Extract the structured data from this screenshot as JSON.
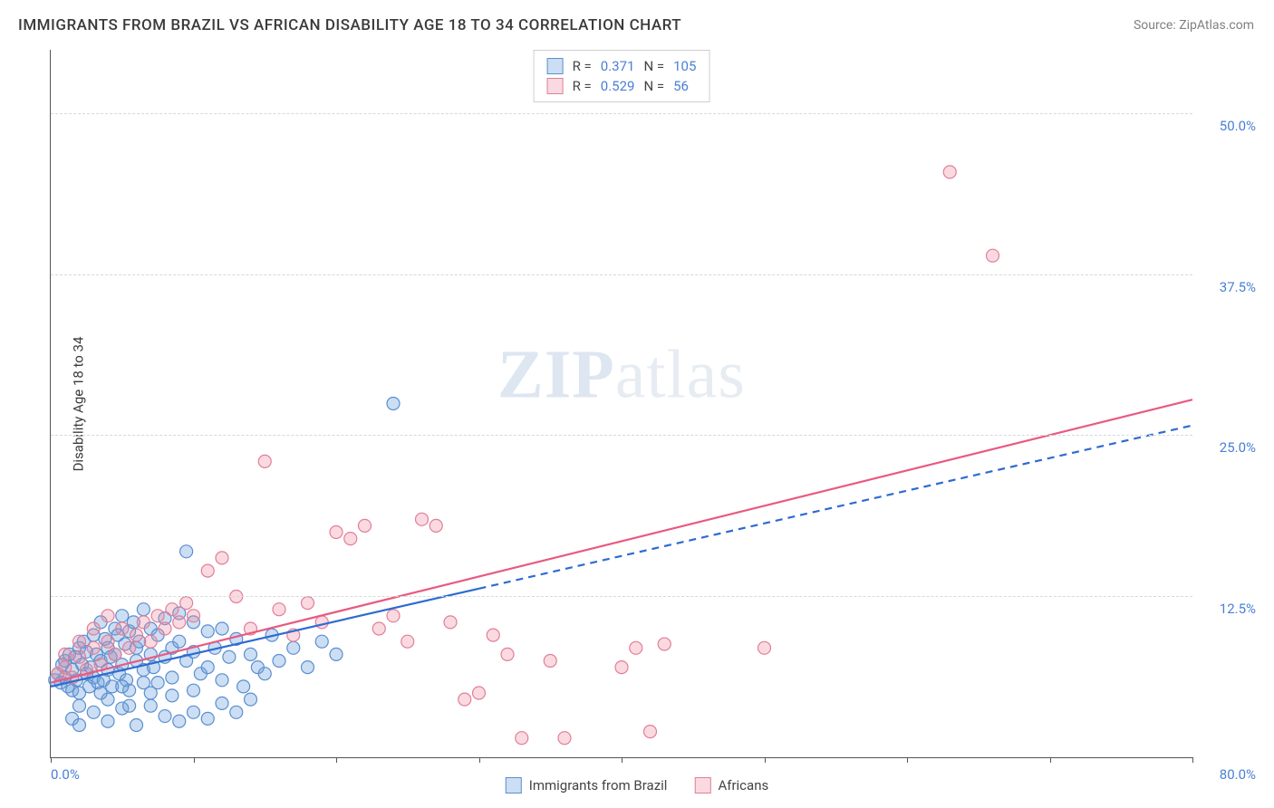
{
  "title": "IMMIGRANTS FROM BRAZIL VS AFRICAN DISABILITY AGE 18 TO 34 CORRELATION CHART",
  "source_prefix": "Source: ",
  "source_name": "ZipAtlas.com",
  "y_axis_label": "Disability Age 18 to 34",
  "watermark_zip": "ZIP",
  "watermark_atlas": "atlas",
  "chart": {
    "type": "scatter",
    "x_min": 0,
    "x_max": 80,
    "y_min": 0,
    "y_max": 55,
    "background_color": "#ffffff",
    "grid_color": "#d8d8d8",
    "axis_color": "#555555",
    "tick_label_color": "#4a7fd6",
    "tick_fontsize": 15,
    "y_gridlines": [
      12.5,
      25.0,
      37.5,
      50.0
    ],
    "y_tick_labels": [
      "12.5%",
      "25.0%",
      "37.5%",
      "50.0%"
    ],
    "x_ticks": [
      0,
      10,
      20,
      30,
      40,
      50,
      60,
      70,
      80
    ],
    "x_min_label": "0.0%",
    "x_max_label": "80.0%",
    "marker_radius": 7,
    "series": [
      {
        "name": "Immigrants from Brazil",
        "fill": "rgba(108,160,220,0.35)",
        "stroke": "#5a8fd0",
        "R": "0.371",
        "N": "105",
        "trend": {
          "stroke": "#2e6bd0",
          "width": 2.2,
          "dash_after_x": 30,
          "x1": 0,
          "y1": 5.5,
          "x2": 80,
          "y2": 25.8
        },
        "points": [
          [
            0.3,
            6.0
          ],
          [
            0.5,
            6.5
          ],
          [
            0.7,
            5.8
          ],
          [
            0.8,
            7.2
          ],
          [
            1.0,
            6.2
          ],
          [
            1.0,
            7.5
          ],
          [
            1.2,
            5.5
          ],
          [
            1.3,
            8.0
          ],
          [
            1.5,
            6.8
          ],
          [
            1.5,
            5.2
          ],
          [
            1.7,
            7.8
          ],
          [
            1.8,
            6.0
          ],
          [
            2.0,
            8.5
          ],
          [
            2.0,
            5.0
          ],
          [
            2.2,
            7.2
          ],
          [
            2.3,
            9.0
          ],
          [
            2.5,
            6.5
          ],
          [
            2.5,
            8.2
          ],
          [
            2.7,
            5.5
          ],
          [
            2.8,
            7.0
          ],
          [
            3.0,
            9.5
          ],
          [
            3.0,
            6.2
          ],
          [
            3.2,
            8.0
          ],
          [
            3.3,
            5.8
          ],
          [
            3.5,
            10.5
          ],
          [
            3.5,
            7.5
          ],
          [
            3.7,
            6.0
          ],
          [
            3.8,
            9.2
          ],
          [
            4.0,
            8.5
          ],
          [
            4.0,
            6.8
          ],
          [
            4.2,
            7.8
          ],
          [
            4.3,
            5.5
          ],
          [
            4.5,
            10.0
          ],
          [
            4.5,
            8.0
          ],
          [
            4.7,
            9.5
          ],
          [
            4.8,
            6.5
          ],
          [
            5.0,
            11.0
          ],
          [
            5.0,
            7.2
          ],
          [
            5.2,
            8.8
          ],
          [
            5.3,
            6.0
          ],
          [
            5.5,
            9.8
          ],
          [
            5.5,
            5.2
          ],
          [
            5.8,
            10.5
          ],
          [
            6.0,
            7.5
          ],
          [
            6.0,
            8.5
          ],
          [
            6.2,
            9.0
          ],
          [
            6.5,
            6.8
          ],
          [
            6.5,
            11.5
          ],
          [
            7.0,
            8.0
          ],
          [
            7.0,
            10.0
          ],
          [
            7.2,
            7.0
          ],
          [
            7.5,
            9.5
          ],
          [
            7.5,
            5.8
          ],
          [
            8.0,
            10.8
          ],
          [
            8.0,
            7.8
          ],
          [
            8.5,
            8.5
          ],
          [
            8.5,
            6.2
          ],
          [
            9.0,
            11.2
          ],
          [
            9.0,
            9.0
          ],
          [
            9.5,
            7.5
          ],
          [
            9.5,
            16.0
          ],
          [
            10.0,
            8.2
          ],
          [
            10.0,
            10.5
          ],
          [
            10.5,
            6.5
          ],
          [
            11.0,
            9.8
          ],
          [
            11.0,
            7.0
          ],
          [
            11.5,
            8.5
          ],
          [
            12.0,
            10.0
          ],
          [
            12.0,
            6.0
          ],
          [
            12.5,
            7.8
          ],
          [
            13.0,
            9.2
          ],
          [
            13.5,
            5.5
          ],
          [
            14.0,
            8.0
          ],
          [
            14.5,
            7.0
          ],
          [
            15.0,
            6.5
          ],
          [
            15.5,
            9.5
          ],
          [
            16.0,
            7.5
          ],
          [
            17.0,
            8.5
          ],
          [
            18.0,
            7.0
          ],
          [
            19.0,
            9.0
          ],
          [
            20.0,
            8.0
          ],
          [
            1.5,
            3.0
          ],
          [
            2.0,
            2.5
          ],
          [
            3.0,
            3.5
          ],
          [
            4.0,
            2.8
          ],
          [
            5.0,
            3.8
          ],
          [
            6.0,
            2.5
          ],
          [
            7.0,
            4.0
          ],
          [
            8.0,
            3.2
          ],
          [
            9.0,
            2.8
          ],
          [
            10.0,
            3.5
          ],
          [
            11.0,
            3.0
          ],
          [
            12.0,
            4.2
          ],
          [
            13.0,
            3.5
          ],
          [
            14.0,
            4.5
          ],
          [
            4.0,
            4.5
          ],
          [
            5.5,
            4.0
          ],
          [
            7.0,
            5.0
          ],
          [
            8.5,
            4.8
          ],
          [
            10.0,
            5.2
          ],
          [
            2.0,
            4.0
          ],
          [
            3.5,
            5.0
          ],
          [
            5.0,
            5.5
          ],
          [
            6.5,
            5.8
          ],
          [
            24.0,
            27.5
          ]
        ]
      },
      {
        "name": "Africans",
        "fill": "rgba(238,140,160,0.32)",
        "stroke": "#e07f98",
        "R": "0.529",
        "N": "56",
        "trend": {
          "stroke": "#e85a82",
          "width": 2.2,
          "x1": 0,
          "y1": 5.8,
          "x2": 80,
          "y2": 27.8
        },
        "points": [
          [
            0.5,
            6.5
          ],
          [
            1.0,
            7.0
          ],
          [
            1.5,
            6.2
          ],
          [
            2.0,
            7.8
          ],
          [
            2.5,
            6.8
          ],
          [
            3.0,
            8.5
          ],
          [
            3.5,
            7.2
          ],
          [
            4.0,
            9.0
          ],
          [
            4.5,
            8.0
          ],
          [
            5.0,
            10.0
          ],
          [
            5.5,
            8.5
          ],
          [
            6.0,
            9.5
          ],
          [
            6.5,
            10.5
          ],
          [
            7.0,
            9.0
          ],
          [
            7.5,
            11.0
          ],
          [
            8.0,
            10.0
          ],
          [
            8.5,
            11.5
          ],
          [
            9.0,
            10.5
          ],
          [
            9.5,
            12.0
          ],
          [
            10.0,
            11.0
          ],
          [
            11.0,
            14.5
          ],
          [
            12.0,
            15.5
          ],
          [
            13.0,
            12.5
          ],
          [
            14.0,
            10.0
          ],
          [
            15.0,
            23.0
          ],
          [
            16.0,
            11.5
          ],
          [
            17.0,
            9.5
          ],
          [
            18.0,
            12.0
          ],
          [
            19.0,
            10.5
          ],
          [
            20.0,
            17.5
          ],
          [
            21.0,
            17.0
          ],
          [
            22.0,
            18.0
          ],
          [
            23.0,
            10.0
          ],
          [
            24.0,
            11.0
          ],
          [
            25.0,
            9.0
          ],
          [
            26.0,
            18.5
          ],
          [
            27.0,
            18.0
          ],
          [
            28.0,
            10.5
          ],
          [
            30.0,
            5.0
          ],
          [
            31.0,
            9.5
          ],
          [
            32.0,
            8.0
          ],
          [
            33.0,
            1.5
          ],
          [
            35.0,
            7.5
          ],
          [
            36.0,
            1.5
          ],
          [
            40.0,
            7.0
          ],
          [
            41.0,
            8.5
          ],
          [
            42.0,
            2.0
          ],
          [
            43.0,
            8.8
          ],
          [
            50.0,
            8.5
          ],
          [
            63.0,
            45.5
          ],
          [
            66.0,
            39.0
          ],
          [
            1.0,
            8.0
          ],
          [
            2.0,
            9.0
          ],
          [
            3.0,
            10.0
          ],
          [
            4.0,
            11.0
          ],
          [
            29.0,
            4.5
          ]
        ]
      }
    ]
  },
  "legend_top": {
    "R_label": "R =",
    "N_label": "N ="
  },
  "legend_bottom": [
    {
      "swatch": "blue",
      "label": "Immigrants from Brazil"
    },
    {
      "swatch": "pink",
      "label": "Africans"
    }
  ]
}
